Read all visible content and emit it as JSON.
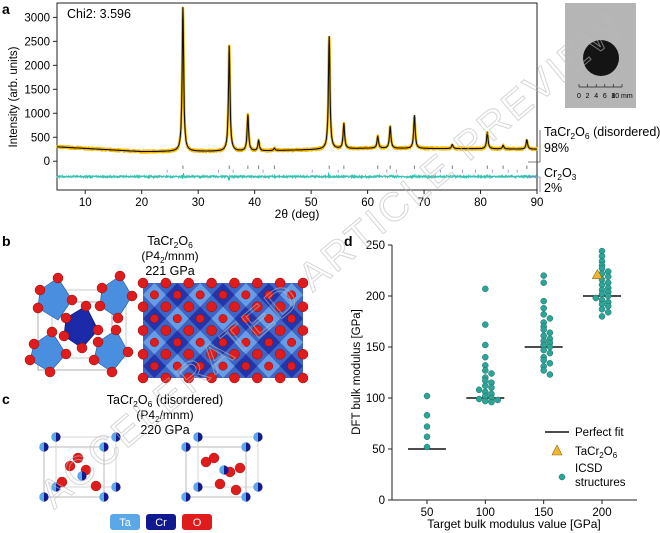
{
  "panels": {
    "a": "a",
    "b": "b",
    "c": "c",
    "d": "d"
  },
  "panel_a": {
    "chi_label": "Chi2: 3.596",
    "ylabel": "Intensity (arb. units)",
    "xlabel": "2θ (deg)",
    "phase1_name": "TaCr",
    "phase1_sub1": "2",
    "phase1_o": "O",
    "phase1_sub2": "6",
    "phase1_suffix": " (disordered)",
    "phase1_pct": "98%",
    "phase2_name": "Cr",
    "phase2_sub1": "2",
    "phase2_o": "O",
    "phase2_sub2": "3",
    "phase2_pct": "2%",
    "scale_ticks": [
      "0",
      "2",
      "4",
      "6",
      "8",
      "10 mm"
    ]
  },
  "panel_b": {
    "formula_base": "TaCr",
    "formula_sub1": "2",
    "formula_o": "O",
    "formula_sub2": "6",
    "group_open": "(P4",
    "group_sub": "2",
    "group_close": "/mnm)",
    "modulus": "221 GPa"
  },
  "panel_c": {
    "formula_base": "TaCr",
    "formula_sub1": "2",
    "formula_o": "O",
    "formula_sub2": "6",
    "formula_suffix": " (disordered)",
    "group_open": "(P4",
    "group_sub": "2",
    "group_close": "/mnm)",
    "modulus": "220 GPa"
  },
  "atom_legend": [
    {
      "label": "Ta",
      "color": "#5aa8e8"
    },
    {
      "label": "Cr",
      "color": "#10198f"
    },
    {
      "label": "O",
      "color": "#e01b1b"
    }
  ],
  "panel_d": {
    "legend_perfect": "Perfect fit",
    "legend_tacro_base": "TaCr",
    "legend_tacro_sub1": "2",
    "legend_tacro_o": "O",
    "legend_tacro_sub2": "6",
    "legend_icsd_line1": "ICSD",
    "legend_icsd_line2": "structures"
  },
  "watermark": "ACCELERATED ARTICLE PREVIEW",
  "colors": {
    "pattern": "#f5b800",
    "fit": "#111111",
    "difference": "#33c2b0",
    "tick_main": "#7a7a7a",
    "tick_minor": "#b59bd6",
    "icsd_marker": "#2aa597",
    "tacro_marker": "#f2b731",
    "ta": "#5aa8e8",
    "cr": "#10198f",
    "o": "#e01b1b"
  },
  "chart_data": [
    {
      "type": "line",
      "panel": "a",
      "title": "",
      "xlabel": "2θ (deg)",
      "ylabel": "Intensity (arb. units)",
      "xlim": [
        5,
        90
      ],
      "ylim": [
        -600,
        3300
      ],
      "xticks": [
        10,
        20,
        30,
        40,
        50,
        60,
        70,
        80,
        90
      ],
      "yticks": [
        0,
        500,
        1000,
        1500,
        2000,
        2500,
        3000
      ],
      "baseline": [
        [
          5,
          300
        ],
        [
          20,
          200
        ],
        [
          40,
          210
        ],
        [
          60,
          270
        ],
        [
          80,
          260
        ],
        [
          90,
          250
        ]
      ],
      "peaks": [
        {
          "x": 27.3,
          "y": 3200
        },
        {
          "x": 35.5,
          "y": 2400
        },
        {
          "x": 38.8,
          "y": 960
        },
        {
          "x": 40.7,
          "y": 430
        },
        {
          "x": 43.5,
          "y": 270
        },
        {
          "x": 53.2,
          "y": 2600
        },
        {
          "x": 55.8,
          "y": 780
        },
        {
          "x": 61.8,
          "y": 520
        },
        {
          "x": 64.0,
          "y": 720
        },
        {
          "x": 68.3,
          "y": 950
        },
        {
          "x": 75.0,
          "y": 350
        },
        {
          "x": 81.2,
          "y": 600
        },
        {
          "x": 84.0,
          "y": 330
        },
        {
          "x": 88.2,
          "y": 450
        }
      ],
      "tick_rows": [
        {
          "name": "TaCr2O6",
          "positions": [
            27.3,
            35.5,
            38.8,
            40.7,
            43.5,
            53.2,
            55.8,
            61.8,
            64.0,
            68.3,
            75.0,
            81.2,
            84.0,
            88.2
          ]
        },
        {
          "name": "Cr2O3",
          "positions": [
            24.5,
            33.6,
            36.2,
            41.5,
            50.2,
            54.8,
            63.4,
            65.1,
            72.9,
            76.8,
            79.1,
            82.1,
            84.9,
            86.5
          ]
        }
      ]
    },
    {
      "type": "scatter",
      "panel": "d",
      "title": "",
      "xlabel": "Target bulk modulus value [GPa]",
      "ylabel": "DFT bulk modulus [GPa]",
      "xlim": [
        20,
        230
      ],
      "ylim": [
        0,
        250
      ],
      "xticks": [
        50,
        100,
        150,
        200
      ],
      "yticks": [
        0,
        50,
        100,
        150,
        200,
        250
      ],
      "legend": "lower-right",
      "perfect_fit": [
        50,
        100,
        150,
        200
      ],
      "tacro_point": {
        "x": 196,
        "y": 221
      },
      "icsd_groups": [
        {
          "target": 50,
          "values": [
            102,
            83,
            72,
            62,
            52
          ]
        },
        {
          "target": 100,
          "values": [
            207,
            172,
            152,
            140,
            132,
            127,
            124,
            120,
            117,
            115,
            112,
            110,
            108,
            106,
            104,
            102,
            100,
            99,
            98,
            97,
            96
          ]
        },
        {
          "target": 150,
          "values": [
            220,
            213,
            195,
            188,
            182,
            178,
            174,
            170,
            167,
            164,
            161,
            158,
            156,
            154,
            152,
            150,
            147,
            144,
            140,
            137,
            134,
            131,
            127,
            123
          ]
        },
        {
          "target": 200,
          "values": [
            244,
            239,
            234,
            230,
            227,
            224,
            222,
            219,
            216,
            213,
            211,
            208,
            206,
            204,
            202,
            200,
            198,
            196,
            194,
            192,
            190,
            187,
            184,
            180
          ]
        }
      ]
    }
  ]
}
